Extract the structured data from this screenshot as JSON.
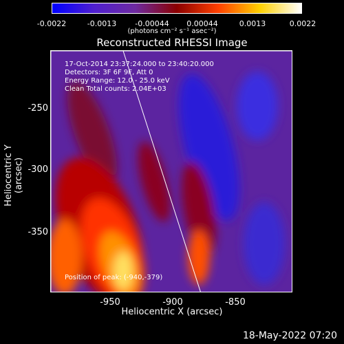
{
  "colorbar": {
    "ticks": [
      "-0.0022",
      "-0.0013",
      "-0.00044",
      "0.00044",
      "0.0013",
      "0.0022"
    ],
    "units": "(photons cm⁻² s⁻¹ asec⁻²)",
    "colors": [
      "#0000ff",
      "#4f1fd0",
      "#6e2aa0",
      "#8b0000",
      "#ff4000",
      "#ffd000",
      "#ffffff"
    ]
  },
  "title": "Reconstructed RHESSI Image",
  "annotations": {
    "time": "17-Oct-2014 23:37:24.000 to 23:40:20.000",
    "detectors": "Detectors: 3F 6F 9F, Att 0",
    "energy": "Energy Range: 12.0 - 25.0 keV",
    "clean": "Clean     Total counts: 2.04E+03",
    "position": "Position of peak: (-940,-379)"
  },
  "axes": {
    "xlabel": "Heliocentric X (arcsec)",
    "ylabel": "Heliocentric Y (arcsec)",
    "xticks": [
      "-950",
      "-900",
      "-850"
    ],
    "yticks": [
      "-250",
      "-300",
      "-350"
    ]
  },
  "footer": {
    "date": "18-May-2022 07:20"
  }
}
